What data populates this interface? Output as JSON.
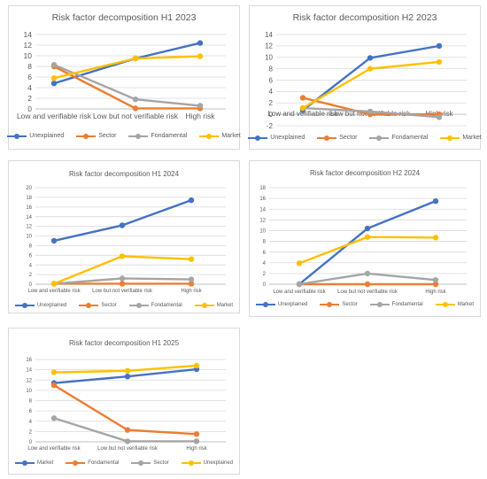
{
  "colors": {
    "blue": "#4472c4",
    "orange": "#ed7d31",
    "gray": "#a5a5a5",
    "yellow": "#ffc000",
    "grid": "#d9d9d9",
    "axis": "#bfbfbf",
    "text": "#595959"
  },
  "chart_data": [
    {
      "type": "line",
      "title": "Risk factor decomposition H1 2023",
      "categories": [
        "Low and verifiable risk",
        "Low but not verifiable risk",
        "High risk"
      ],
      "ylim": [
        0,
        14
      ],
      "ystep": 2,
      "grid": true,
      "legend_position": "bottom",
      "series": [
        {
          "name": "Unexplained",
          "color": "#4472c4",
          "values": [
            4.8,
            9.5,
            12.4
          ]
        },
        {
          "name": "Sector",
          "color": "#ed7d31",
          "values": [
            8.0,
            0.1,
            0.1
          ]
        },
        {
          "name": "Fondamental",
          "color": "#a5a5a5",
          "values": [
            8.3,
            1.8,
            0.6
          ]
        },
        {
          "name": "Market",
          "color": "#ffc000",
          "values": [
            5.8,
            9.5,
            9.9
          ]
        }
      ]
    },
    {
      "type": "line",
      "title": "Risk factor decomposition H2 2023",
      "categories": [
        "Low and verifiable risk",
        "Low but not verifiable risk",
        "High risk"
      ],
      "ylim": [
        -2,
        14
      ],
      "ystep": 2,
      "grid": true,
      "legend_position": "bottom",
      "series": [
        {
          "name": "Unexplained",
          "color": "#4472c4",
          "values": [
            0.7,
            9.9,
            12.0
          ]
        },
        {
          "name": "Sector",
          "color": "#ed7d31",
          "values": [
            2.9,
            0.0,
            0.0
          ]
        },
        {
          "name": "Fondamental",
          "color": "#a5a5a5",
          "values": [
            1.1,
            0.5,
            -0.5
          ]
        },
        {
          "name": "Market",
          "color": "#ffc000",
          "values": [
            1.1,
            8.0,
            9.2
          ]
        }
      ]
    },
    {
      "type": "line",
      "title": "Risk factor decomposition H1 2024",
      "categories": [
        "Low and verifiable risk",
        "Low but not verifiable risk",
        "High risk"
      ],
      "ylim": [
        0,
        20
      ],
      "ystep": 2,
      "grid": true,
      "legend_position": "bottom",
      "series": [
        {
          "name": "Unexplained",
          "color": "#4472c4",
          "values": [
            9.0,
            12.2,
            17.4
          ]
        },
        {
          "name": "Sector",
          "color": "#ed7d31",
          "values": [
            0.1,
            0.1,
            0.1
          ]
        },
        {
          "name": "Fondamental",
          "color": "#a5a5a5",
          "values": [
            0.1,
            1.2,
            1.0
          ]
        },
        {
          "name": "Market",
          "color": "#ffc000",
          "values": [
            0.1,
            5.8,
            5.2
          ]
        }
      ]
    },
    {
      "type": "line",
      "title": "Risk factor decomposition H2 2024",
      "categories": [
        "Low and verifiable risk",
        "Low but not verifiable risk",
        "High risk"
      ],
      "ylim": [
        0,
        18
      ],
      "ystep": 2,
      "grid": true,
      "legend_position": "bottom",
      "series": [
        {
          "name": "Unexplained",
          "color": "#4472c4",
          "values": [
            0.0,
            10.4,
            15.5
          ]
        },
        {
          "name": "Sector",
          "color": "#ed7d31",
          "values": [
            0.0,
            0.0,
            0.0
          ]
        },
        {
          "name": "Fondamental",
          "color": "#a5a5a5",
          "values": [
            0.0,
            2.0,
            0.8
          ]
        },
        {
          "name": "Market",
          "color": "#ffc000",
          "values": [
            3.9,
            8.8,
            8.7
          ]
        }
      ]
    },
    {
      "type": "line",
      "title": "Risk factor decomposition H1 2025",
      "categories": [
        "Low and verifiable risk",
        "Low but not verifiable risk",
        "High risk"
      ],
      "ylim": [
        0,
        16
      ],
      "ystep": 2,
      "grid": true,
      "legend_position": "bottom",
      "series": [
        {
          "name": "Market",
          "color": "#4472c4",
          "values": [
            11.4,
            12.7,
            14.1
          ]
        },
        {
          "name": "Fondamental",
          "color": "#ed7d31",
          "values": [
            11.0,
            2.3,
            1.5
          ]
        },
        {
          "name": "Sector",
          "color": "#a5a5a5",
          "values": [
            4.6,
            0.1,
            0.1
          ]
        },
        {
          "name": "Unexplained",
          "color": "#ffc000",
          "values": [
            13.5,
            13.8,
            14.8
          ]
        }
      ]
    }
  ]
}
